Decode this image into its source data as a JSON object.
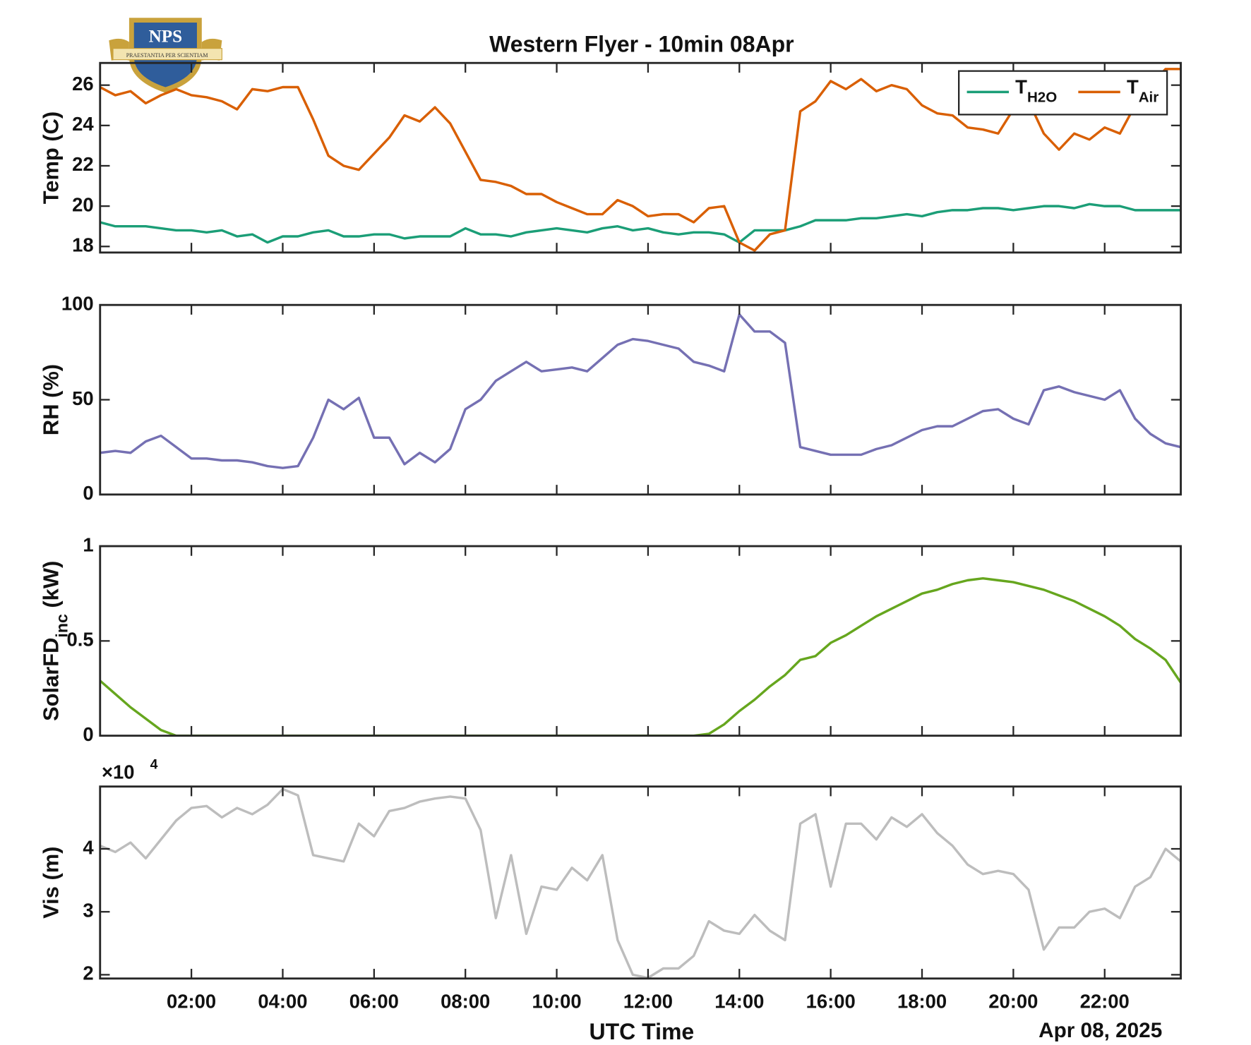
{
  "logo": {
    "text": "NPS",
    "motto": "PRAESTANTIA PER SCIENTIAM"
  },
  "chart_data": [
    {
      "type": "line",
      "title": "Western Flyer - 10min 08Apr",
      "ylabel": "Temp (C)",
      "x": [
        0,
        20,
        40,
        60,
        80,
        100,
        120,
        140,
        160,
        180,
        200,
        220,
        240,
        260,
        280,
        300,
        320,
        340,
        360,
        380,
        400,
        420,
        440,
        460,
        480,
        500,
        520,
        540,
        560,
        580,
        600,
        620,
        640,
        660,
        680,
        700,
        720,
        740,
        760,
        780,
        800,
        820,
        840,
        860,
        880,
        900,
        920,
        940,
        960,
        980,
        1000,
        1020,
        1040,
        1060,
        1080,
        1100,
        1120,
        1140,
        1160,
        1180,
        1200,
        1220,
        1240,
        1260,
        1280,
        1300,
        1320,
        1340,
        1360,
        1380,
        1400,
        1420
      ],
      "xlim": [
        0,
        1420
      ],
      "xticks": [
        120,
        240,
        360,
        480,
        600,
        720,
        840,
        960,
        1080,
        1200,
        1320
      ],
      "ylim": [
        17.7,
        27.1
      ],
      "yticks": [
        18,
        20,
        22,
        24,
        26
      ],
      "legend": "northeast",
      "series": [
        {
          "name": "T_H2O",
          "color": "#1b9e77",
          "values": [
            19.2,
            19.0,
            19.0,
            19.0,
            18.9,
            18.8,
            18.8,
            18.7,
            18.8,
            18.5,
            18.6,
            18.2,
            18.5,
            18.5,
            18.7,
            18.8,
            18.5,
            18.5,
            18.6,
            18.6,
            18.4,
            18.5,
            18.5,
            18.5,
            18.9,
            18.6,
            18.6,
            18.5,
            18.7,
            18.8,
            18.9,
            18.8,
            18.7,
            18.9,
            19.0,
            18.8,
            18.9,
            18.7,
            18.6,
            18.7,
            18.7,
            18.6,
            18.2,
            18.8,
            18.8,
            18.8,
            19.0,
            19.3,
            19.3,
            19.3,
            19.4,
            19.4,
            19.5,
            19.6,
            19.5,
            19.7,
            19.8,
            19.8,
            19.9,
            19.9,
            19.8,
            19.9,
            20.0,
            20.0,
            19.9,
            20.1,
            20.0,
            20.0,
            19.8,
            19.8,
            19.8,
            19.8
          ]
        },
        {
          "name": "T_Air",
          "color": "#d95f02",
          "values": [
            25.9,
            25.5,
            25.7,
            25.1,
            25.5,
            25.8,
            25.5,
            25.4,
            25.2,
            24.8,
            25.8,
            25.7,
            25.9,
            25.9,
            24.3,
            22.5,
            22.0,
            21.8,
            22.6,
            23.4,
            24.5,
            24.2,
            24.9,
            24.1,
            22.7,
            21.3,
            21.2,
            21.0,
            20.6,
            20.6,
            20.2,
            19.9,
            19.6,
            19.6,
            20.3,
            20.0,
            19.5,
            19.6,
            19.6,
            19.2,
            19.9,
            20.0,
            18.2,
            17.8,
            18.6,
            18.8,
            24.7,
            25.2,
            26.2,
            25.8,
            26.3,
            25.7,
            26.0,
            25.8,
            25.0,
            24.6,
            24.5,
            23.9,
            23.8,
            23.6,
            24.8,
            25.2,
            23.6,
            22.8,
            23.6,
            23.3,
            23.9,
            23.6,
            25.0,
            26.0,
            26.8,
            26.8
          ]
        }
      ]
    },
    {
      "type": "line",
      "ylabel": "RH (%)",
      "x": [
        0,
        20,
        40,
        60,
        80,
        100,
        120,
        140,
        160,
        180,
        200,
        220,
        240,
        260,
        280,
        300,
        320,
        340,
        360,
        380,
        400,
        420,
        440,
        460,
        480,
        500,
        520,
        540,
        560,
        580,
        600,
        620,
        640,
        660,
        680,
        700,
        720,
        740,
        760,
        780,
        800,
        820,
        840,
        860,
        880,
        900,
        920,
        940,
        960,
        980,
        1000,
        1020,
        1040,
        1060,
        1080,
        1100,
        1120,
        1140,
        1160,
        1180,
        1200,
        1220,
        1240,
        1260,
        1280,
        1300,
        1320,
        1340,
        1360,
        1380,
        1400,
        1420
      ],
      "xlim": [
        0,
        1420
      ],
      "xticks": [
        120,
        240,
        360,
        480,
        600,
        720,
        840,
        960,
        1080,
        1200,
        1320
      ],
      "ylim": [
        0,
        100
      ],
      "yticks": [
        0,
        50,
        100
      ],
      "series": [
        {
          "color": "#7570b3",
          "values": [
            22,
            23,
            22,
            28,
            31,
            25,
            19,
            19,
            18,
            18,
            17,
            15,
            14,
            15,
            30,
            50,
            45,
            51,
            30,
            30,
            16,
            22,
            17,
            24,
            45,
            50,
            60,
            65,
            70,
            65,
            66,
            67,
            65,
            72,
            79,
            82,
            81,
            79,
            77,
            70,
            68,
            65,
            95,
            86,
            86,
            80,
            25,
            23,
            21,
            21,
            21,
            24,
            26,
            30,
            34,
            36,
            36,
            40,
            44,
            45,
            40,
            37,
            55,
            57,
            54,
            52,
            50,
            55,
            40,
            32,
            27,
            25
          ]
        }
      ]
    },
    {
      "type": "line",
      "ylabel": "SolarFD_inc (kW)",
      "x": [
        0,
        20,
        40,
        60,
        80,
        100,
        120,
        140,
        160,
        180,
        200,
        220,
        240,
        260,
        280,
        300,
        320,
        340,
        360,
        380,
        400,
        420,
        440,
        460,
        480,
        500,
        520,
        540,
        560,
        580,
        600,
        620,
        640,
        660,
        680,
        700,
        720,
        740,
        760,
        780,
        800,
        820,
        840,
        860,
        880,
        900,
        920,
        940,
        960,
        980,
        1000,
        1020,
        1040,
        1060,
        1080,
        1100,
        1120,
        1140,
        1160,
        1180,
        1200,
        1220,
        1240,
        1260,
        1280,
        1300,
        1320,
        1340,
        1360,
        1380,
        1400,
        1420
      ],
      "xlim": [
        0,
        1420
      ],
      "xticks": [
        120,
        240,
        360,
        480,
        600,
        720,
        840,
        960,
        1080,
        1200,
        1320
      ],
      "ylim": [
        0,
        1
      ],
      "yticks": [
        0,
        0.5,
        1
      ],
      "series": [
        {
          "color": "#66a61e",
          "values": [
            0.29,
            0.22,
            0.15,
            0.09,
            0.03,
            0,
            0,
            0,
            0,
            0,
            0,
            0,
            0,
            0,
            0,
            0,
            0,
            0,
            0,
            0,
            0,
            0,
            0,
            0,
            0,
            0,
            0,
            0,
            0,
            0,
            0,
            0,
            0,
            0,
            0,
            0,
            0,
            0,
            0,
            0,
            0.01,
            0.06,
            0.13,
            0.19,
            0.26,
            0.32,
            0.4,
            0.42,
            0.49,
            0.53,
            0.58,
            0.63,
            0.67,
            0.71,
            0.75,
            0.77,
            0.8,
            0.82,
            0.83,
            0.82,
            0.81,
            0.79,
            0.77,
            0.74,
            0.71,
            0.67,
            0.63,
            0.58,
            0.51,
            0.46,
            0.4,
            0.28
          ]
        }
      ]
    },
    {
      "type": "line",
      "ylabel": "Vis (m)",
      "xlabel": "UTC Time",
      "date_label": "Apr 08, 2025",
      "y_multiplier": {
        "base": "×10",
        "exponent": "4"
      },
      "x": [
        0,
        20,
        40,
        60,
        80,
        100,
        120,
        140,
        160,
        180,
        200,
        220,
        240,
        260,
        280,
        300,
        320,
        340,
        360,
        380,
        400,
        420,
        440,
        460,
        480,
        500,
        520,
        540,
        560,
        580,
        600,
        620,
        640,
        660,
        680,
        700,
        720,
        740,
        760,
        780,
        800,
        820,
        840,
        860,
        880,
        900,
        920,
        940,
        960,
        980,
        1000,
        1020,
        1040,
        1060,
        1080,
        1100,
        1120,
        1140,
        1160,
        1180,
        1200,
        1220,
        1240,
        1260,
        1280,
        1300,
        1320,
        1340,
        1360,
        1380,
        1400,
        1420
      ],
      "xlim": [
        0,
        1420
      ],
      "xticks": [
        {
          "value": 120,
          "label": "02:00"
        },
        {
          "value": 240,
          "label": "04:00"
        },
        {
          "value": 360,
          "label": "06:00"
        },
        {
          "value": 480,
          "label": "08:00"
        },
        {
          "value": 600,
          "label": "10:00"
        },
        {
          "value": 720,
          "label": "12:00"
        },
        {
          "value": 840,
          "label": "14:00"
        },
        {
          "value": 960,
          "label": "16:00"
        },
        {
          "value": 1080,
          "label": "18:00"
        },
        {
          "value": 1200,
          "label": "20:00"
        },
        {
          "value": 1320,
          "label": "22:00"
        }
      ],
      "ylim": [
        19400,
        49900
      ],
      "yticks": [
        {
          "value": 20000,
          "label": "2"
        },
        {
          "value": 30000,
          "label": "3"
        },
        {
          "value": 40000,
          "label": "4"
        }
      ],
      "series": [
        {
          "color": "#bdbdbd",
          "values": [
            40500,
            39500,
            41000,
            38500,
            41500,
            44500,
            46500,
            46800,
            45000,
            46500,
            45500,
            47000,
            49500,
            48500,
            39000,
            38500,
            38000,
            44000,
            42000,
            46000,
            46500,
            47500,
            48000,
            48300,
            48000,
            43000,
            29000,
            39000,
            26500,
            34000,
            33500,
            37000,
            35000,
            39000,
            25500,
            20000,
            19500,
            21000,
            21000,
            23000,
            28500,
            27000,
            26500,
            29500,
            27000,
            25500,
            44000,
            45500,
            34000,
            44000,
            44000,
            41500,
            45000,
            43500,
            45500,
            42500,
            40500,
            37500,
            36000,
            36500,
            36000,
            33500,
            24000,
            27500,
            27500,
            30000,
            30500,
            29000,
            34000,
            35500,
            40000,
            38000
          ]
        }
      ]
    }
  ]
}
